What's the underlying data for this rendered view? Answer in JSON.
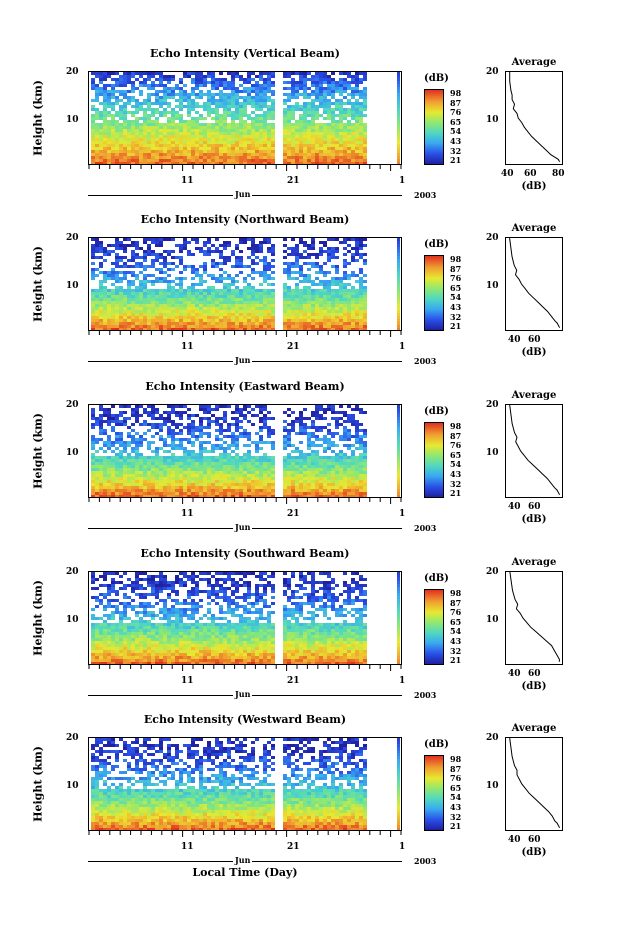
{
  "chart_data": [
    {
      "type": "heatmap",
      "title": "Echo Intensity (Vertical Beam)",
      "ylabel": "Height (km)",
      "ylim": [
        0,
        20
      ],
      "yticks": [
        "20",
        "10"
      ],
      "xticks": [
        "11",
        "21",
        "1"
      ],
      "month_label": "Jun",
      "year_label": "2003",
      "colorbar": {
        "unit": "(dB)",
        "labels": [
          "98",
          "87",
          "76",
          "65",
          "54",
          "43",
          "32",
          "21"
        ]
      },
      "average": {
        "title": "Average",
        "xlabel": "(dB)",
        "xticks": [
          "40",
          "60",
          "80"
        ],
        "yticks": [
          "20",
          "10"
        ],
        "x": [
          40,
          40,
          41,
          42,
          42,
          44,
          43,
          46,
          47,
          50,
          52,
          55,
          58,
          62,
          66,
          70,
          74,
          77,
          80,
          81
        ],
        "y": [
          20,
          18,
          16,
          15,
          14,
          13,
          12,
          11,
          10,
          9,
          8,
          7,
          6,
          5,
          4,
          3,
          2,
          1.5,
          1,
          0.5
        ]
      }
    },
    {
      "type": "heatmap",
      "title": "Echo Intensity (Northward Beam)",
      "ylabel": "Height (km)",
      "ylim": [
        0,
        20
      ],
      "yticks": [
        "20",
        "10"
      ],
      "xticks": [
        "11",
        "21",
        "1"
      ],
      "month_label": "Jun",
      "year_label": "2003",
      "colorbar": {
        "unit": "(dB)",
        "labels": [
          "98",
          "87",
          "76",
          "65",
          "54",
          "43",
          "32",
          "21"
        ]
      },
      "average": {
        "title": "Average",
        "xlabel": "(dB)",
        "xticks": [
          "40",
          "60"
        ],
        "yticks": [
          "20",
          "10"
        ],
        "x": [
          32,
          33,
          34,
          35,
          36,
          38,
          37,
          40,
          42,
          45,
          48,
          52,
          56,
          60,
          64,
          67,
          70,
          72,
          73,
          74
        ],
        "y": [
          20,
          18,
          16,
          15,
          14,
          13,
          12,
          11,
          10,
          9,
          8,
          7,
          6,
          5,
          4,
          3,
          2,
          1.5,
          1,
          0.5
        ]
      }
    },
    {
      "type": "heatmap",
      "title": "Echo Intensity (Eastward Beam)",
      "ylabel": "Height (km)",
      "ylim": [
        0,
        20
      ],
      "yticks": [
        "20",
        "10"
      ],
      "xticks": [
        "11",
        "21",
        "1"
      ],
      "month_label": "Jun",
      "year_label": "2003",
      "colorbar": {
        "unit": "(dB)",
        "labels": [
          "98",
          "87",
          "76",
          "65",
          "54",
          "43",
          "32",
          "21"
        ]
      },
      "average": {
        "title": "Average",
        "xlabel": "(dB)",
        "xticks": [
          "40",
          "60"
        ],
        "yticks": [
          "20",
          "10"
        ],
        "x": [
          32,
          33,
          34,
          35,
          36,
          38,
          37,
          39,
          41,
          44,
          47,
          51,
          55,
          59,
          63,
          66,
          69,
          71,
          72,
          73
        ],
        "y": [
          20,
          18,
          16,
          15,
          14,
          13,
          12,
          11,
          10,
          9,
          8,
          7,
          6,
          5,
          4,
          3,
          2,
          1.5,
          1,
          0.5
        ]
      }
    },
    {
      "type": "heatmap",
      "title": "Echo Intensity (Southward Beam)",
      "ylabel": "Height (km)",
      "ylim": [
        0,
        20
      ],
      "yticks": [
        "20",
        "10"
      ],
      "xticks": [
        "11",
        "21",
        "1"
      ],
      "month_label": "Jun",
      "year_label": "2003",
      "colorbar": {
        "unit": "(dB)",
        "labels": [
          "98",
          "87",
          "76",
          "65",
          "54",
          "43",
          "32",
          "21"
        ]
      },
      "average": {
        "title": "Average",
        "xlabel": "(dB)",
        "xticks": [
          "40",
          "60"
        ],
        "yticks": [
          "20",
          "10"
        ],
        "x": [
          32,
          33,
          34,
          35,
          36,
          38,
          37,
          40,
          42,
          45,
          48,
          52,
          56,
          60,
          64,
          66,
          68,
          69,
          70,
          70
        ],
        "y": [
          20,
          18,
          16,
          15,
          14,
          13,
          12,
          11,
          10,
          9,
          8,
          7,
          6,
          5,
          4,
          3,
          2,
          1.5,
          1,
          0.5
        ]
      }
    },
    {
      "type": "heatmap",
      "title": "Echo Intensity (Westward Beam)",
      "ylabel": "Height (km)",
      "ylim": [
        0,
        20
      ],
      "yticks": [
        "20",
        "10"
      ],
      "xticks": [
        "11",
        "21",
        "1"
      ],
      "month_label": "Jun",
      "year_label": "2003",
      "colorbar": {
        "unit": "(dB)",
        "labels": [
          "98",
          "87",
          "76",
          "65",
          "54",
          "43",
          "32",
          "21"
        ]
      },
      "average": {
        "title": "Average",
        "xlabel": "(dB)",
        "xticks": [
          "40",
          "60"
        ],
        "yticks": [
          "20",
          "10"
        ],
        "x": [
          32,
          33,
          34,
          35,
          36,
          38,
          38,
          40,
          42,
          45,
          48,
          52,
          56,
          60,
          64,
          67,
          69,
          71,
          72,
          73
        ],
        "y": [
          20,
          18,
          16,
          15,
          14,
          13,
          12,
          11,
          10,
          9,
          8,
          7,
          6,
          5,
          4,
          3,
          2,
          1.5,
          1,
          0.5
        ]
      }
    }
  ],
  "footer": {
    "xlabel": "Local Time (Day)"
  }
}
